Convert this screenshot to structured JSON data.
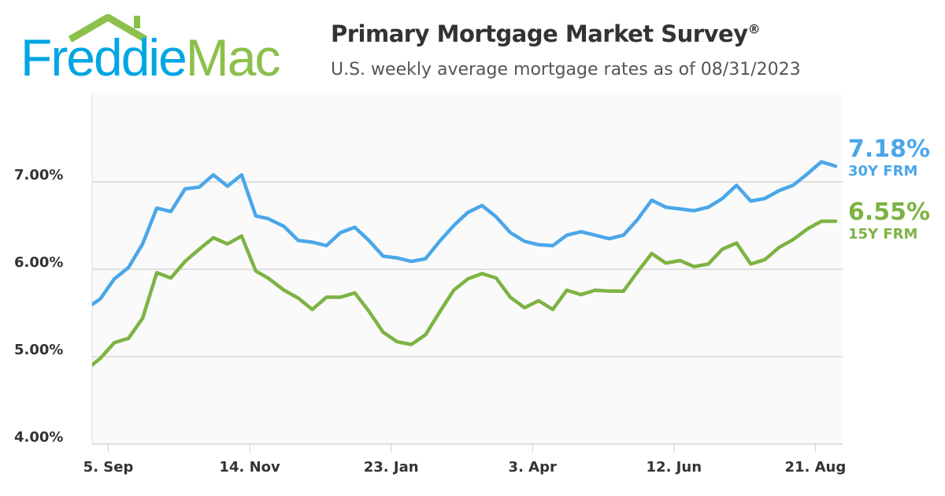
{
  "logo": {
    "part1": "Freddie",
    "part2": "Mac"
  },
  "header": {
    "title": "Primary Mortgage Market Survey",
    "title_mark": "®",
    "subtitle": "U.S. weekly average mortgage rates as of 08/31/2023"
  },
  "colors": {
    "series_30y": "#4aa7e8",
    "series_15y": "#7db343",
    "logo_blue": "#00a6e4",
    "logo_green": "#8cc04b"
  },
  "chart_data": {
    "type": "line",
    "title": "",
    "xlabel": "",
    "ylabel": "",
    "ylim": [
      4,
      8
    ],
    "xlim": [
      "2022-08-28",
      "2023-08-31"
    ],
    "yticks": [
      "4.00%",
      "5.00%",
      "6.00%",
      "7.00%"
    ],
    "xticks": [
      {
        "date": "2022-09-05",
        "label": "5. Sep"
      },
      {
        "date": "2022-11-14",
        "label": "14. Nov"
      },
      {
        "date": "2023-01-23",
        "label": "23. Jan"
      },
      {
        "date": "2023-04-03",
        "label": "3. Apr"
      },
      {
        "date": "2023-06-12",
        "label": "12. Jun"
      },
      {
        "date": "2023-08-21",
        "label": "21. Aug"
      }
    ],
    "grid": "horizontal",
    "x": [
      "2022-08-25",
      "2022-09-01",
      "2022-09-08",
      "2022-09-15",
      "2022-09-22",
      "2022-09-29",
      "2022-10-06",
      "2022-10-13",
      "2022-10-20",
      "2022-10-27",
      "2022-11-03",
      "2022-11-10",
      "2022-11-17",
      "2022-11-23",
      "2022-12-01",
      "2022-12-08",
      "2022-12-15",
      "2022-12-22",
      "2022-12-29",
      "2023-01-05",
      "2023-01-12",
      "2023-01-19",
      "2023-01-26",
      "2023-02-02",
      "2023-02-09",
      "2023-02-16",
      "2023-02-23",
      "2023-03-02",
      "2023-03-09",
      "2023-03-16",
      "2023-03-23",
      "2023-03-30",
      "2023-04-06",
      "2023-04-13",
      "2023-04-20",
      "2023-04-27",
      "2023-05-04",
      "2023-05-11",
      "2023-05-18",
      "2023-05-25",
      "2023-06-01",
      "2023-06-08",
      "2023-06-15",
      "2023-06-22",
      "2023-06-29",
      "2023-07-06",
      "2023-07-13",
      "2023-07-20",
      "2023-07-27",
      "2023-08-03",
      "2023-08-10",
      "2023-08-17",
      "2023-08-24",
      "2023-08-31"
    ],
    "series": [
      {
        "name": "30Y FRM",
        "last_label": "7.18%",
        "values": [
          5.55,
          5.66,
          5.89,
          6.02,
          6.29,
          6.7,
          6.66,
          6.92,
          6.94,
          7.08,
          6.95,
          7.08,
          6.61,
          6.58,
          6.49,
          6.33,
          6.31,
          6.27,
          6.42,
          6.48,
          6.33,
          6.15,
          6.13,
          6.09,
          6.12,
          6.32,
          6.5,
          6.65,
          6.73,
          6.6,
          6.42,
          6.32,
          6.28,
          6.27,
          6.39,
          6.43,
          6.39,
          6.35,
          6.39,
          6.57,
          6.79,
          6.71,
          6.69,
          6.67,
          6.71,
          6.81,
          6.96,
          6.78,
          6.81,
          6.9,
          6.96,
          7.09,
          7.23,
          7.18
        ]
      },
      {
        "name": "15Y FRM",
        "last_label": "6.55%",
        "values": [
          4.85,
          4.98,
          5.16,
          5.21,
          5.44,
          5.96,
          5.9,
          6.09,
          6.23,
          6.36,
          6.29,
          6.38,
          5.98,
          5.9,
          5.76,
          5.67,
          5.54,
          5.68,
          5.68,
          5.73,
          5.52,
          5.28,
          5.17,
          5.14,
          5.25,
          5.51,
          5.76,
          5.89,
          5.95,
          5.9,
          5.68,
          5.56,
          5.64,
          5.54,
          5.76,
          5.71,
          5.76,
          5.75,
          5.75,
          5.97,
          6.18,
          6.07,
          6.1,
          6.03,
          6.06,
          6.23,
          6.3,
          6.06,
          6.11,
          6.25,
          6.34,
          6.46,
          6.55,
          6.55
        ]
      }
    ]
  }
}
